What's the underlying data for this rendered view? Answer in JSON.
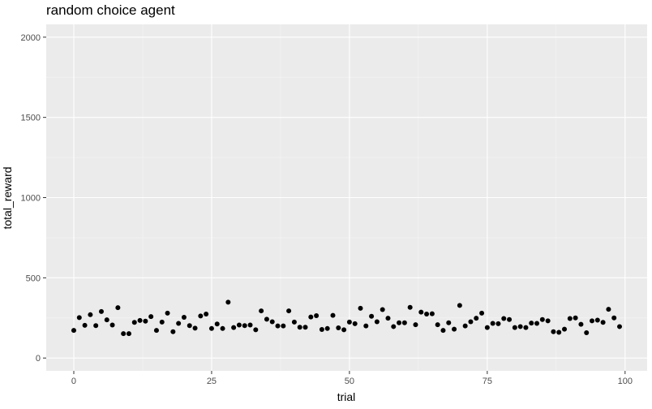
{
  "chart_data": {
    "type": "scatter",
    "title": "random choice agent",
    "xlabel": "trial",
    "ylabel": "total_reward",
    "xlim": [
      -5,
      104
    ],
    "ylim": [
      -80,
      2080
    ],
    "x_ticks": [
      0,
      25,
      50,
      75,
      100
    ],
    "x_tick_labels": [
      "0",
      "25",
      "50",
      "75",
      "100"
    ],
    "y_ticks": [
      0,
      500,
      1000,
      1500,
      2000
    ],
    "y_tick_labels": [
      "0",
      "500",
      "1000",
      "1500",
      "2000"
    ],
    "grid": true,
    "x": [
      0,
      1,
      2,
      3,
      4,
      5,
      6,
      7,
      8,
      9,
      10,
      11,
      12,
      13,
      14,
      15,
      16,
      17,
      18,
      19,
      20,
      21,
      22,
      23,
      24,
      25,
      26,
      27,
      28,
      29,
      30,
      31,
      32,
      33,
      34,
      35,
      36,
      37,
      38,
      39,
      40,
      41,
      42,
      43,
      44,
      45,
      46,
      47,
      48,
      49,
      50,
      51,
      52,
      53,
      54,
      55,
      56,
      57,
      58,
      59,
      60,
      61,
      62,
      63,
      64,
      65,
      66,
      67,
      68,
      69,
      70,
      71,
      72,
      73,
      74,
      75,
      76,
      77,
      78,
      79,
      80,
      81,
      82,
      83,
      84,
      85,
      86,
      87,
      88,
      89,
      90,
      91,
      92,
      93,
      94,
      95,
      96,
      97,
      98,
      99
    ],
    "y": [
      172,
      252,
      204,
      270,
      202,
      290,
      238,
      206,
      314,
      152,
      152,
      222,
      234,
      230,
      258,
      172,
      224,
      280,
      164,
      216,
      254,
      202,
      186,
      262,
      274,
      184,
      212,
      184,
      348,
      190,
      206,
      202,
      206,
      176,
      294,
      242,
      226,
      200,
      200,
      294,
      224,
      192,
      192,
      256,
      264,
      178,
      184,
      266,
      188,
      176,
      224,
      214,
      310,
      200,
      260,
      226,
      302,
      248,
      196,
      220,
      220,
      316,
      208,
      286,
      274,
      276,
      208,
      172,
      220,
      180,
      328,
      200,
      226,
      248,
      280,
      190,
      216,
      214,
      246,
      240,
      190,
      196,
      190,
      218,
      216,
      240,
      232,
      164,
      160,
      180,
      246,
      250,
      210,
      158,
      232,
      236,
      222,
      304,
      250,
      196
    ]
  }
}
